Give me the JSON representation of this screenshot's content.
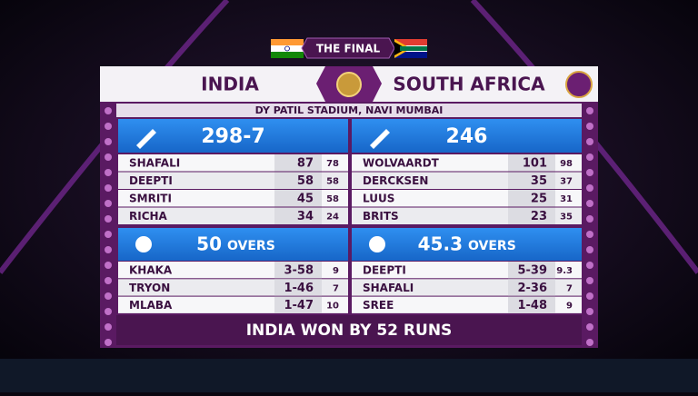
{
  "header": {
    "tag": "THE FINAL",
    "team_left": "INDIA",
    "team_right": "SOUTH AFRICA",
    "venue": "DY PATIL STADIUM, NAVI MUMBAI"
  },
  "innings": [
    {
      "score": "298-7",
      "batters": [
        [
          "SHAFALI",
          87,
          78
        ],
        [
          "DEEPTI",
          58,
          58
        ],
        [
          "SMRITI",
          45,
          58
        ],
        [
          "RICHA",
          34,
          24
        ]
      ],
      "overs": 50,
      "overs_label": "OVERS",
      "bowlers": [
        [
          "KHAKA",
          "3-58",
          9
        ],
        [
          "TRYON",
          "1-46",
          7
        ],
        [
          "MLABA",
          "1-47",
          10
        ]
      ]
    },
    {
      "score": 246,
      "batters": [
        [
          "WOLVAARDT",
          101,
          98
        ],
        [
          "DERCKSEN",
          35,
          37
        ],
        [
          "LUUS",
          25,
          31
        ],
        [
          "BRITS",
          23,
          35
        ]
      ],
      "overs": 45.3,
      "overs_label": "OVERS",
      "bowlers": [
        [
          "DEEPTI",
          "5-39",
          9.3
        ],
        [
          "SHAFALI",
          "2-36",
          7
        ],
        [
          "SREE",
          "1-48",
          9
        ]
      ]
    }
  ],
  "result": "INDIA WON BY 52 RUNS"
}
